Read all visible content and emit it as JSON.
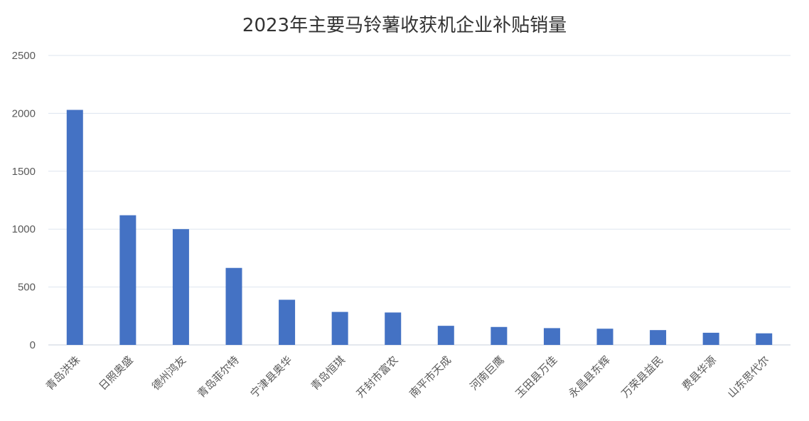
{
  "chart_data": {
    "type": "bar",
    "title": "2023年主要马铃薯收获机企业补贴销量",
    "xlabel": "",
    "ylabel": "",
    "categories": [
      "青岛洪珠",
      "日照奥盛",
      "德州鸿友",
      "青岛菲尔特",
      "宁津县奥华",
      "青岛恒琪",
      "开封市富农",
      "南平市天成",
      "河南巨鹰",
      "玉田县万佳",
      "永昌县东辉",
      "万荣县益民",
      "费县华源",
      "山东思代尔"
    ],
    "values": [
      2030,
      1120,
      1000,
      665,
      390,
      285,
      280,
      165,
      155,
      145,
      140,
      128,
      105,
      100
    ],
    "ylim": [
      0,
      2500
    ],
    "yticks": [
      0,
      500,
      1000,
      1500,
      2000,
      2500
    ],
    "grid": true,
    "legend": "none",
    "colors": {
      "bar": "#4472c4",
      "gridline": "#dde5ef",
      "text": "#595959",
      "title": "#333333"
    }
  }
}
